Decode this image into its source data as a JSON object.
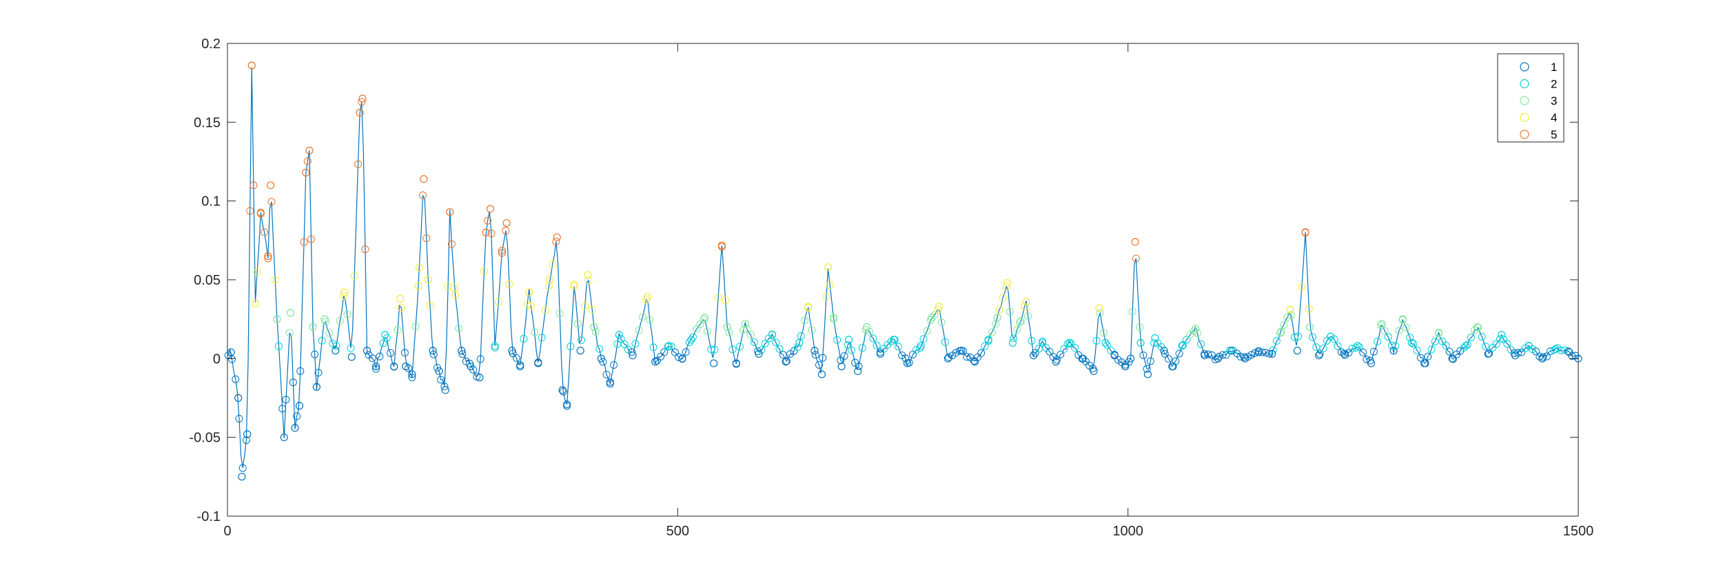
{
  "chart_data": {
    "type": "scatter",
    "title": "",
    "xlabel": "",
    "ylabel": "",
    "xlim": [
      0,
      1500
    ],
    "ylim": [
      -0.1,
      0.2
    ],
    "x_ticks": [
      0,
      500,
      1000,
      1500
    ],
    "x_tick_labels": [
      "0",
      "500",
      "1000",
      "1500"
    ],
    "y_ticks": [
      -0.1,
      -0.05,
      0,
      0.05,
      0.1,
      0.15,
      0.2
    ],
    "y_tick_labels": [
      "-0.1",
      "-0.05",
      "0",
      "0.05",
      "0.1",
      "0.15",
      "0.2"
    ],
    "grid": false,
    "legend_position": "top-right",
    "marker": "circle (open)",
    "line": "thin line joining points of series 1",
    "series": [
      {
        "name": "1",
        "color": "#0072BD"
      },
      {
        "name": "2",
        "color": "#00D0D8"
      },
      {
        "name": "3",
        "color": "#7FE89A"
      },
      {
        "name": "4",
        "color": "#F2EB3A"
      },
      {
        "name": "5",
        "color": "#E8742A"
      }
    ],
    "peaks": [
      {
        "x": 4,
        "y": 0.004
      },
      {
        "x": 12,
        "y": -0.025
      },
      {
        "x": 16,
        "y": -0.075
      },
      {
        "x": 22,
        "y": -0.048
      },
      {
        "x": 27,
        "y": 0.186
      },
      {
        "x": 31,
        "y": 0.035
      },
      {
        "x": 37,
        "y": 0.092
      },
      {
        "x": 45,
        "y": 0.065
      },
      {
        "x": 48,
        "y": 0.11
      },
      {
        "x": 55,
        "y": 0.025
      },
      {
        "x": 63,
        "y": -0.05
      },
      {
        "x": 70,
        "y": 0.029
      },
      {
        "x": 75,
        "y": -0.044
      },
      {
        "x": 80,
        "y": -0.03
      },
      {
        "x": 87,
        "y": 0.118
      },
      {
        "x": 91,
        "y": 0.132
      },
      {
        "x": 95,
        "y": 0.02
      },
      {
        "x": 99,
        "y": -0.018
      },
      {
        "x": 108,
        "y": 0.025
      },
      {
        "x": 120,
        "y": 0.005
      },
      {
        "x": 130,
        "y": 0.042
      },
      {
        "x": 138,
        "y": 0.001
      },
      {
        "x": 147,
        "y": 0.156
      },
      {
        "x": 150,
        "y": 0.165
      },
      {
        "x": 155,
        "y": 0.005
      },
      {
        "x": 165,
        "y": -0.005
      },
      {
        "x": 175,
        "y": 0.015
      },
      {
        "x": 185,
        "y": -0.005
      },
      {
        "x": 192,
        "y": 0.038
      },
      {
        "x": 198,
        "y": -0.005
      },
      {
        "x": 205,
        "y": -0.01
      },
      {
        "x": 212,
        "y": 0.046
      },
      {
        "x": 218,
        "y": 0.114
      },
      {
        "x": 223,
        "y": 0.05
      },
      {
        "x": 228,
        "y": 0.005
      },
      {
        "x": 235,
        "y": -0.008
      },
      {
        "x": 242,
        "y": -0.02
      },
      {
        "x": 247,
        "y": 0.093
      },
      {
        "x": 252,
        "y": 0.045
      },
      {
        "x": 260,
        "y": 0.005
      },
      {
        "x": 270,
        "y": -0.005
      },
      {
        "x": 280,
        "y": -0.012
      },
      {
        "x": 287,
        "y": 0.08
      },
      {
        "x": 292,
        "y": 0.095
      },
      {
        "x": 297,
        "y": 0.007
      },
      {
        "x": 305,
        "y": 0.067
      },
      {
        "x": 310,
        "y": 0.086
      },
      {
        "x": 316,
        "y": 0.005
      },
      {
        "x": 325,
        "y": -0.005
      },
      {
        "x": 335,
        "y": 0.042
      },
      {
        "x": 345,
        "y": -0.003
      },
      {
        "x": 358,
        "y": 0.05
      },
      {
        "x": 366,
        "y": 0.077
      },
      {
        "x": 372,
        "y": -0.02
      },
      {
        "x": 377,
        "y": -0.03
      },
      {
        "x": 385,
        "y": 0.047
      },
      {
        "x": 392,
        "y": 0.005
      },
      {
        "x": 400,
        "y": 0.053
      },
      {
        "x": 407,
        "y": 0.02
      },
      {
        "x": 415,
        "y": 0.0
      },
      {
        "x": 425,
        "y": -0.015
      },
      {
        "x": 435,
        "y": 0.015
      },
      {
        "x": 450,
        "y": 0.002
      },
      {
        "x": 466,
        "y": 0.039
      },
      {
        "x": 475,
        "y": -0.002
      },
      {
        "x": 490,
        "y": 0.008
      },
      {
        "x": 505,
        "y": 0.0
      },
      {
        "x": 515,
        "y": 0.012
      },
      {
        "x": 530,
        "y": 0.026
      },
      {
        "x": 540,
        "y": -0.003
      },
      {
        "x": 549,
        "y": 0.071
      },
      {
        "x": 555,
        "y": 0.02
      },
      {
        "x": 565,
        "y": -0.003
      },
      {
        "x": 575,
        "y": 0.022
      },
      {
        "x": 590,
        "y": 0.003
      },
      {
        "x": 605,
        "y": 0.015
      },
      {
        "x": 620,
        "y": -0.002
      },
      {
        "x": 635,
        "y": 0.01
      },
      {
        "x": 645,
        "y": 0.033
      },
      {
        "x": 652,
        "y": 0.005
      },
      {
        "x": 660,
        "y": -0.01
      },
      {
        "x": 667,
        "y": 0.058
      },
      {
        "x": 673,
        "y": 0.025
      },
      {
        "x": 682,
        "y": -0.005
      },
      {
        "x": 690,
        "y": 0.012
      },
      {
        "x": 700,
        "y": -0.008
      },
      {
        "x": 710,
        "y": 0.02
      },
      {
        "x": 725,
        "y": 0.003
      },
      {
        "x": 740,
        "y": 0.012
      },
      {
        "x": 755,
        "y": -0.003
      },
      {
        "x": 770,
        "y": 0.008
      },
      {
        "x": 782,
        "y": 0.026
      },
      {
        "x": 790,
        "y": 0.033
      },
      {
        "x": 800,
        "y": 0.0
      },
      {
        "x": 815,
        "y": 0.005
      },
      {
        "x": 830,
        "y": -0.002
      },
      {
        "x": 845,
        "y": 0.012
      },
      {
        "x": 855,
        "y": 0.026
      },
      {
        "x": 866,
        "y": 0.048
      },
      {
        "x": 872,
        "y": 0.01
      },
      {
        "x": 880,
        "y": 0.023
      },
      {
        "x": 887,
        "y": 0.036
      },
      {
        "x": 895,
        "y": 0.002
      },
      {
        "x": 905,
        "y": 0.01
      },
      {
        "x": 920,
        "y": -0.002
      },
      {
        "x": 935,
        "y": 0.01
      },
      {
        "x": 950,
        "y": 0.0
      },
      {
        "x": 962,
        "y": -0.008
      },
      {
        "x": 968,
        "y": 0.032
      },
      {
        "x": 975,
        "y": 0.01
      },
      {
        "x": 985,
        "y": 0.002
      },
      {
        "x": 997,
        "y": -0.005
      },
      {
        "x": 1003,
        "y": 0.0
      },
      {
        "x": 1008,
        "y": 0.074
      },
      {
        "x": 1014,
        "y": 0.01
      },
      {
        "x": 1022,
        "y": -0.01
      },
      {
        "x": 1030,
        "y": 0.013
      },
      {
        "x": 1040,
        "y": 0.005
      },
      {
        "x": 1050,
        "y": -0.005
      },
      {
        "x": 1060,
        "y": 0.008
      },
      {
        "x": 1075,
        "y": 0.019
      },
      {
        "x": 1085,
        "y": 0.002
      },
      {
        "x": 1100,
        "y": 0.0
      },
      {
        "x": 1115,
        "y": 0.005
      },
      {
        "x": 1130,
        "y": 0.0
      },
      {
        "x": 1145,
        "y": 0.004
      },
      {
        "x": 1160,
        "y": 0.003
      },
      {
        "x": 1170,
        "y": 0.017
      },
      {
        "x": 1180,
        "y": 0.031
      },
      {
        "x": 1188,
        "y": 0.005
      },
      {
        "x": 1197,
        "y": 0.08
      },
      {
        "x": 1202,
        "y": 0.02
      },
      {
        "x": 1212,
        "y": 0.002
      },
      {
        "x": 1225,
        "y": 0.014
      },
      {
        "x": 1240,
        "y": 0.003
      },
      {
        "x": 1255,
        "y": 0.008
      },
      {
        "x": 1270,
        "y": -0.003
      },
      {
        "x": 1282,
        "y": 0.022
      },
      {
        "x": 1295,
        "y": 0.005
      },
      {
        "x": 1305,
        "y": 0.025
      },
      {
        "x": 1315,
        "y": 0.01
      },
      {
        "x": 1330,
        "y": -0.003
      },
      {
        "x": 1345,
        "y": 0.016
      },
      {
        "x": 1360,
        "y": 0.0
      },
      {
        "x": 1375,
        "y": 0.008
      },
      {
        "x": 1388,
        "y": 0.02
      },
      {
        "x": 1400,
        "y": 0.003
      },
      {
        "x": 1415,
        "y": 0.015
      },
      {
        "x": 1430,
        "y": 0.002
      },
      {
        "x": 1445,
        "y": 0.008
      },
      {
        "x": 1460,
        "y": 0.0
      },
      {
        "x": 1475,
        "y": 0.006
      },
      {
        "x": 1490,
        "y": 0.004
      },
      {
        "x": 1500,
        "y": 0.0
      }
    ]
  }
}
